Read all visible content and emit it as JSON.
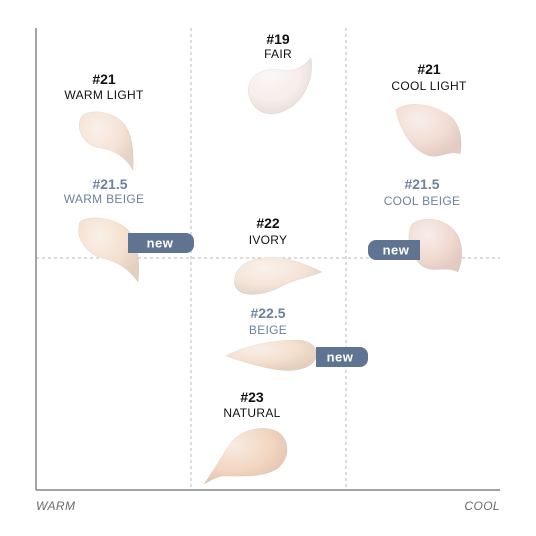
{
  "axis": {
    "left_label": "WARM",
    "right_label": "COOL"
  },
  "badges": {
    "new_label": "new"
  },
  "shades": [
    {
      "id": "s19",
      "code": "#19",
      "name": "FAIR",
      "is_new": false,
      "swatch_color": "#f7ece9"
    },
    {
      "id": "s21w",
      "code": "#21",
      "name": "WARM LIGHT",
      "is_new": false,
      "swatch_color": "#f4dfd1"
    },
    {
      "id": "s21c",
      "code": "#21",
      "name": "COOL LIGHT",
      "is_new": false,
      "swatch_color": "#f1d9cf"
    },
    {
      "id": "s215w",
      "code": "#21.5",
      "name": "WARM BEIGE",
      "is_new": true,
      "swatch_color": "#f3ddcb"
    },
    {
      "id": "s215c",
      "code": "#21.5",
      "name": "COOL BEIGE",
      "is_new": true,
      "swatch_color": "#efd7ce"
    },
    {
      "id": "s22",
      "code": "#22",
      "name": "IVORY",
      "is_new": false,
      "swatch_color": "#f3e1d4"
    },
    {
      "id": "s225",
      "code": "#22.5",
      "name": "BEIGE",
      "is_new": true,
      "swatch_color": "#f2dcc9"
    },
    {
      "id": "s23",
      "code": "#23",
      "name": "NATURAL",
      "is_new": false,
      "swatch_color": "#f1d3bd"
    }
  ]
}
